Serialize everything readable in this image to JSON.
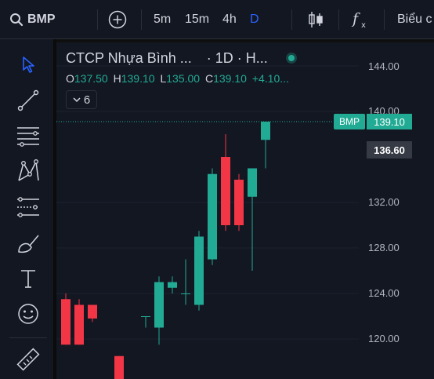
{
  "toolbar": {
    "symbol": "BMP",
    "intervals": [
      "5m",
      "15m",
      "4h",
      "D"
    ],
    "active_interval": "D",
    "chart_type_label": "Biểu c"
  },
  "legend": {
    "title": "CTCP Nhựa Bình ...",
    "interval_text": "· 1D · H...",
    "open_label": "O",
    "open": "137.50",
    "high_label": "H",
    "high": "139.10",
    "low_label": "L",
    "low": "135.00",
    "close_label": "C",
    "close": "139.10",
    "change": "+4.10...",
    "indicator_count": "6"
  },
  "price_axis": {
    "ticks": [
      "144.00",
      "140.00",
      "132.00",
      "128.00",
      "124.00",
      "120.00"
    ],
    "last_price_symbol": "BMP",
    "last_price": "139.10",
    "crosshair_price": "136.60"
  },
  "colors": {
    "up": "#22ab94",
    "down": "#f23645",
    "bg": "#131722",
    "accent": "#2962ff"
  },
  "tools": [
    "cursor-icon",
    "trend-line-icon",
    "fib-retracement-icon",
    "pattern-icon",
    "prediction-icon",
    "brush-icon",
    "text-icon",
    "emoji-icon",
    "ruler-icon"
  ],
  "chart_data": {
    "type": "candlestick",
    "candles": [
      {
        "o": 123.5,
        "h": 124.0,
        "l": 119.5,
        "c": 119.5
      },
      {
        "o": 123.0,
        "h": 123.5,
        "l": 119.5,
        "c": 119.5
      },
      {
        "o": 123.0,
        "h": 123.0,
        "l": 121.5,
        "c": 121.8
      },
      null,
      {
        "o": 118.5,
        "h": 118.5,
        "l": 116.0,
        "c": 116.0
      },
      null,
      {
        "o": 122.0,
        "h": 122.0,
        "l": 121.0,
        "c": 122.0
      },
      {
        "o": 121.0,
        "h": 125.5,
        "l": 119.5,
        "c": 125.0
      },
      {
        "o": 124.5,
        "h": 125.5,
        "l": 124.0,
        "c": 125.0
      },
      {
        "o": 124.0,
        "h": 127.0,
        "l": 123.0,
        "c": 124.0
      },
      {
        "o": 123.0,
        "h": 129.5,
        "l": 122.5,
        "c": 129.0
      },
      {
        "o": 127.0,
        "h": 135.0,
        "l": 126.5,
        "c": 134.5
      },
      {
        "o": 136.0,
        "h": 138.0,
        "l": 129.5,
        "c": 130.0
      },
      {
        "o": 134.0,
        "h": 134.5,
        "l": 129.5,
        "c": 130.0
      },
      {
        "o": 132.5,
        "h": 135.0,
        "l": 126.0,
        "c": 135.0
      },
      {
        "o": 137.5,
        "h": 139.1,
        "l": 135.0,
        "c": 139.1
      }
    ]
  }
}
